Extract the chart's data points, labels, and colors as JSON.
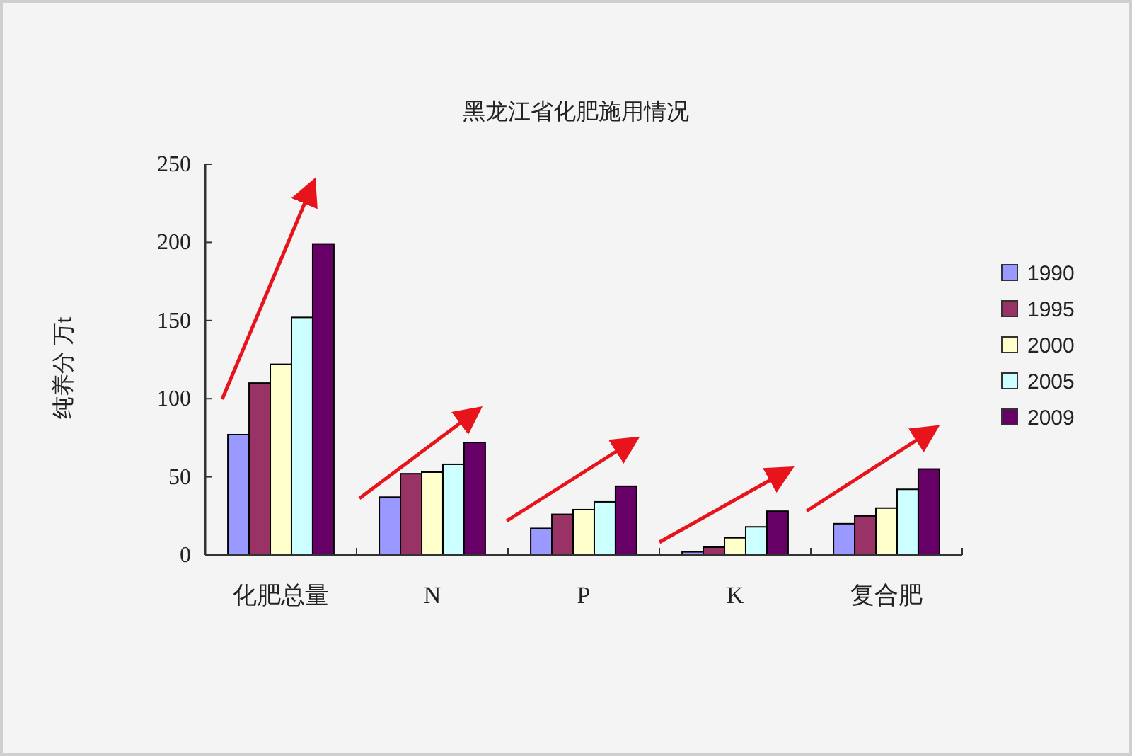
{
  "chart_data": {
    "type": "bar",
    "title": "黑龙江省化肥施用情况",
    "ylabel": "纯养分  万t",
    "categories": [
      "化肥总量",
      "N",
      "P",
      "K",
      "复合肥"
    ],
    "series": [
      {
        "name": "1990",
        "color": "#9999ff",
        "values": [
          77,
          37,
          17,
          2,
          20
        ]
      },
      {
        "name": "1995",
        "color": "#993366",
        "values": [
          110,
          52,
          26,
          5,
          25
        ]
      },
      {
        "name": "2000",
        "color": "#ffffcc",
        "values": [
          122,
          53,
          29,
          11,
          30
        ]
      },
      {
        "name": "2005",
        "color": "#ccffff",
        "values": [
          152,
          58,
          34,
          18,
          42
        ]
      },
      {
        "name": "2009",
        "color": "#660066",
        "values": [
          199,
          72,
          44,
          28,
          55
        ]
      }
    ],
    "ylim": [
      0,
      250
    ],
    "yticks": [
      0,
      50,
      100,
      150,
      200,
      250
    ],
    "grid": false,
    "legend": "right"
  }
}
